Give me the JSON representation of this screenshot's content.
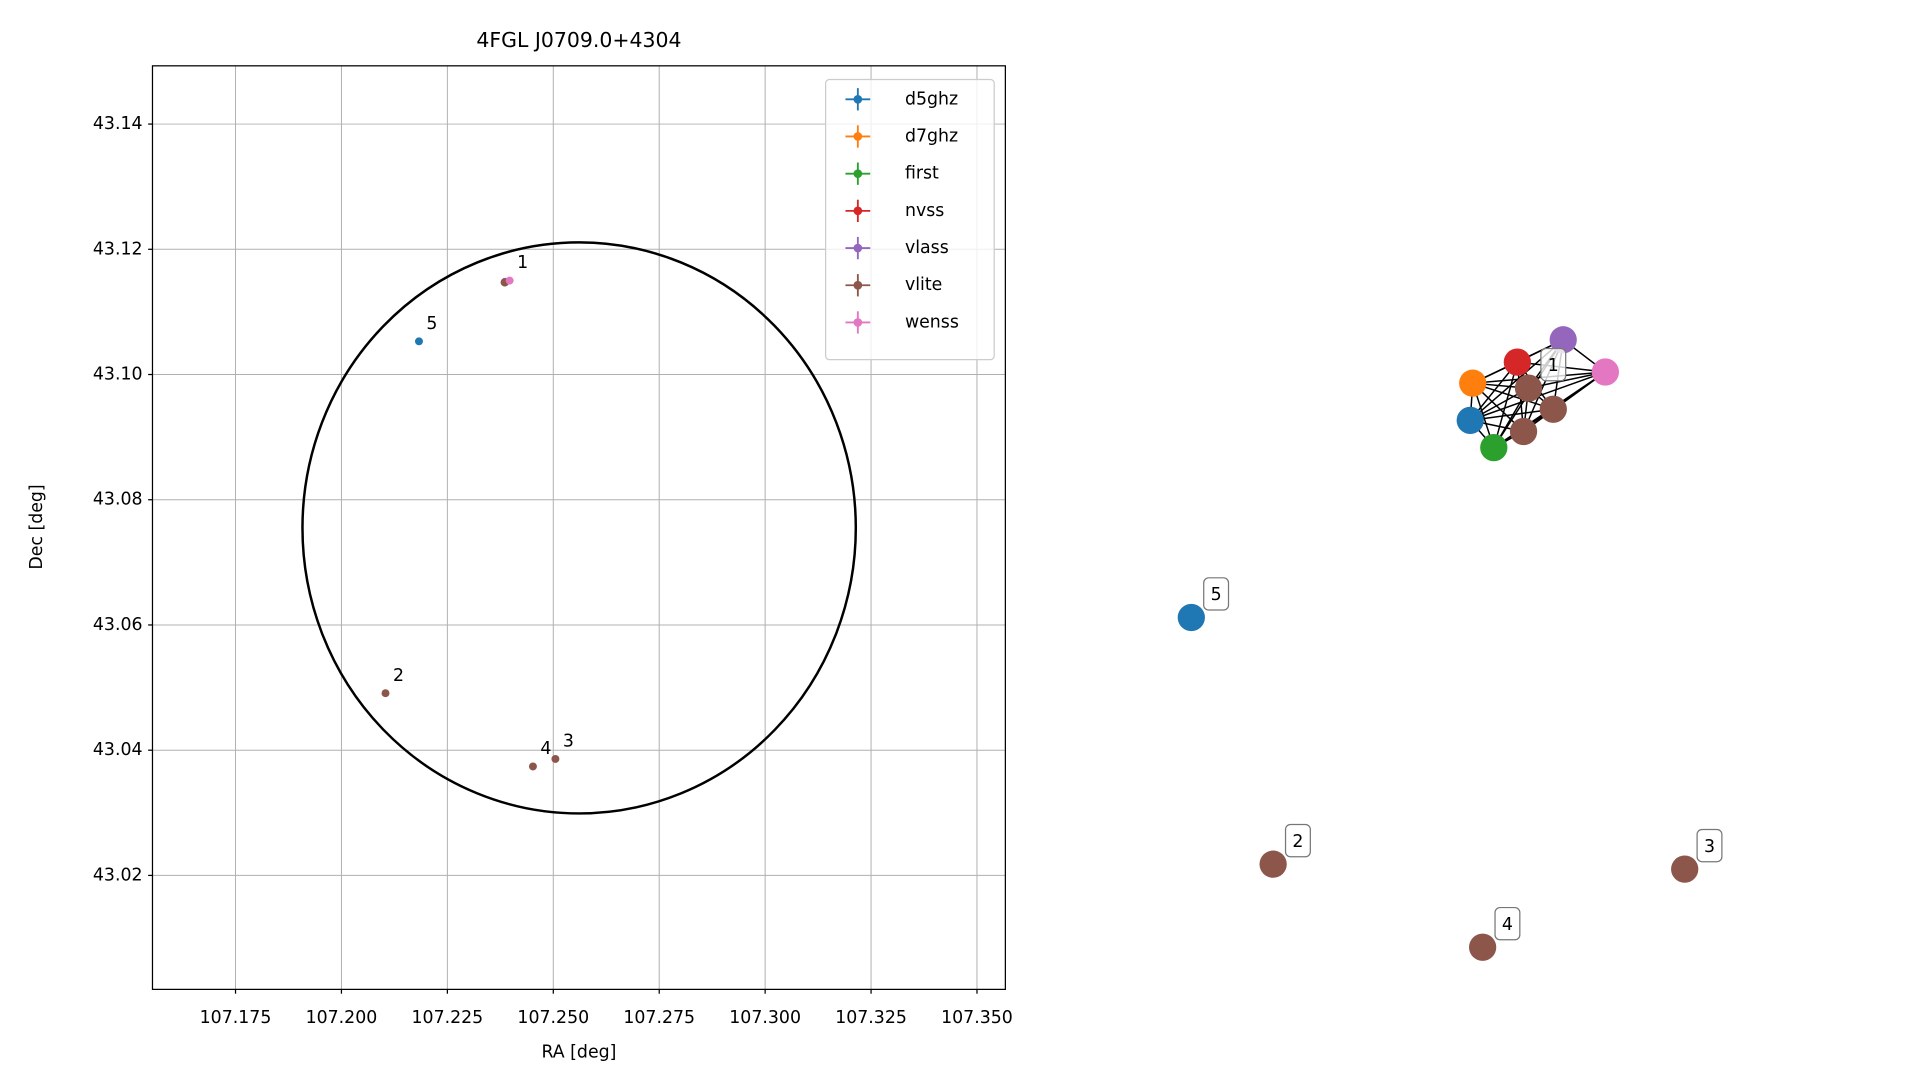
{
  "chart_data": [
    {
      "type": "scatter",
      "title": "4FGL J0709.0+4304",
      "x_label": "RA [deg]",
      "y_label": "Dec [deg]",
      "xlim": [
        107.1554,
        107.3567
      ],
      "ylim": [
        43.0018,
        43.1493
      ],
      "xticks": [
        107.175,
        {
          "value": 107.2,
          "label": "107.200"
        },
        107.225,
        {
          "value": 107.25,
          "label": "107.250"
        },
        107.275,
        {
          "value": 107.3,
          "label": "107.300"
        },
        107.325,
        {
          "value": 107.35,
          "label": "107.350"
        }
      ],
      "yticks": [
        43.02,
        43.04,
        43.06,
        43.08,
        {
          "value": 43.1,
          "label": "43.10"
        },
        43.12,
        43.14
      ],
      "grid": true,
      "legend": "upper right",
      "series": [
        {
          "name": "d5ghz",
          "color": "#1f77b4",
          "x": [
            107.2183
          ],
          "y": [
            43.1053
          ]
        },
        {
          "name": "d7ghz",
          "color": "#ff7f0e",
          "x": [
            107.2386
          ],
          "y": [
            43.1148
          ]
        },
        {
          "name": "first",
          "color": "#2ca02c",
          "x": [
            107.2386
          ],
          "y": [
            43.1147
          ]
        },
        {
          "name": "nvss",
          "color": "#d62728",
          "x": [
            107.2387
          ],
          "y": [
            43.1148
          ]
        },
        {
          "name": "vlass",
          "color": "#9467bd",
          "x": [
            107.2386
          ],
          "y": [
            43.1148
          ]
        },
        {
          "name": "vlite",
          "color": "#8c564b",
          "x": [
            107.2385,
            107.2104,
            107.2505,
            107.2452
          ],
          "y": [
            43.1147,
            43.0491,
            43.0386,
            43.0374
          ]
        },
        {
          "name": "wenss",
          "color": "#e377c2",
          "x": [
            107.2397
          ],
          "y": [
            43.115
          ]
        }
      ],
      "annotations": [
        {
          "text": "1",
          "x": 107.2397,
          "y": 43.115
        },
        {
          "text": "2",
          "x": 107.2104,
          "y": 43.0491
        },
        {
          "text": "3",
          "x": 107.2505,
          "y": 43.0386
        },
        {
          "text": "4",
          "x": 107.2452,
          "y": 43.0374
        },
        {
          "text": "5",
          "x": 107.2183,
          "y": 43.1053
        }
      ],
      "ellipse": {
        "center": [
          107.2561,
          43.0755
        ],
        "width": 0.1306,
        "height": 0.0912,
        "color": "#000000"
      }
    },
    {
      "type": "network",
      "nodes": [
        {
          "color": "#1f77b4"
        },
        {
          "color": "#ff7f0e"
        },
        {
          "color": "#2ca02c"
        },
        {
          "color": "#d62728"
        },
        {
          "color": "#9467bd"
        },
        {
          "color": "#e377c2"
        },
        {
          "color": "#8c564b",
          "label": "1"
        },
        {
          "color": "#8c564b"
        },
        {
          "color": "#8c564b"
        },
        {
          "color": "#1f77b4",
          "label": "5"
        },
        {
          "color": "#8c564b",
          "label": "2"
        },
        {
          "color": "#8c564b",
          "label": "4"
        },
        {
          "color": "#8c564b",
          "label": "3"
        }
      ],
      "edges": [
        [
          0,
          1
        ],
        [
          0,
          2
        ],
        [
          0,
          3
        ],
        [
          0,
          4
        ],
        [
          0,
          5
        ],
        [
          0,
          6
        ],
        [
          0,
          7
        ],
        [
          0,
          8
        ],
        [
          1,
          2
        ],
        [
          1,
          3
        ],
        [
          1,
          4
        ],
        [
          1,
          5
        ],
        [
          1,
          6
        ],
        [
          1,
          7
        ],
        [
          1,
          8
        ],
        [
          2,
          3
        ],
        [
          2,
          4
        ],
        [
          2,
          5
        ],
        [
          2,
          6
        ],
        [
          2,
          7
        ],
        [
          2,
          8
        ],
        [
          3,
          4
        ],
        [
          3,
          5
        ],
        [
          3,
          6
        ],
        [
          3,
          7
        ],
        [
          3,
          8
        ],
        [
          4,
          5
        ],
        [
          4,
          6
        ],
        [
          4,
          7
        ],
        [
          4,
          8
        ],
        [
          5,
          6
        ],
        [
          5,
          7
        ],
        [
          5,
          8
        ],
        [
          6,
          7
        ],
        [
          6,
          8
        ],
        [
          7,
          8
        ]
      ]
    }
  ]
}
